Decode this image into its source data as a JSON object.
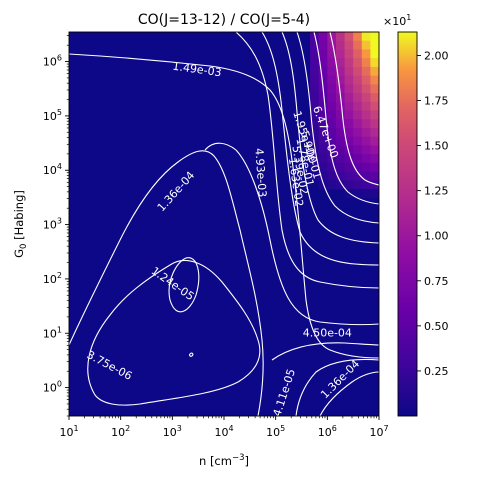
{
  "chart_data": {
    "type": "heatmap",
    "title": "CO(J=13-12) / CO(J=5-4)",
    "xlabel": "n [cm$^{-3}$]",
    "xlabel_text": "n [cm",
    "xlabel_sup": "−3",
    "xlabel_close": "]",
    "ylabel_text": "G",
    "ylabel_sub": "0",
    "ylabel_rest": " [Habing]",
    "xscale": "log",
    "yscale": "log",
    "xlim": [
      10,
      10000000
    ],
    "ylim": [
      0.3,
      3500000
    ],
    "x_ticks": [
      {
        "base": "10",
        "exp": "1",
        "value": 10
      },
      {
        "base": "10",
        "exp": "2",
        "value": 100
      },
      {
        "base": "10",
        "exp": "3",
        "value": 1000
      },
      {
        "base": "10",
        "exp": "4",
        "value": 10000
      },
      {
        "base": "10",
        "exp": "5",
        "value": 100000
      },
      {
        "base": "10",
        "exp": "6",
        "value": 1000000
      },
      {
        "base": "10",
        "exp": "7",
        "value": 10000000
      }
    ],
    "y_ticks": [
      {
        "base": "10",
        "exp": "0",
        "value": 1
      },
      {
        "base": "10",
        "exp": "1",
        "value": 10
      },
      {
        "base": "10",
        "exp": "2",
        "value": 100
      },
      {
        "base": "10",
        "exp": "3",
        "value": 1000
      },
      {
        "base": "10",
        "exp": "4",
        "value": 10000
      },
      {
        "base": "10",
        "exp": "5",
        "value": 100000
      },
      {
        "base": "10",
        "exp": "6",
        "value": 1000000
      }
    ],
    "colorbar": {
      "colormap": "plasma",
      "range": [
        0.0,
        2.13
      ],
      "multiplier_base": "×10",
      "multiplier_exp": "1",
      "ticks": [
        "0.25",
        "0.50",
        "0.75",
        "1.00",
        "1.25",
        "1.50",
        "1.75",
        "2.00"
      ],
      "tick_values": [
        0.25,
        0.5,
        0.75,
        1.0,
        1.25,
        1.5,
        1.75,
        2.0
      ]
    },
    "contour_labels": [
      {
        "text": "1.49e-03",
        "n": 3000,
        "g0": 700000,
        "angle": 8
      },
      {
        "text": "1.36e-04",
        "n": 1200,
        "g0": 4000,
        "angle": -48
      },
      {
        "text": "1.24e-05",
        "n": 1000,
        "g0": 80,
        "angle": 35
      },
      {
        "text": "3.75e-06",
        "n": 60,
        "g0": 2.5,
        "angle": 28
      },
      {
        "text": "4.93e-03",
        "n": 50000,
        "g0": 9000,
        "angle": 86
      },
      {
        "text": "1.63e-02",
        "n": 240000,
        "g0": 6000,
        "angle": 82
      },
      {
        "text": "5.39e-02",
        "n": 290000,
        "g0": 10000,
        "angle": 80
      },
      {
        "text": "1.78e-01",
        "n": 360000,
        "g0": 14000,
        "angle": 78
      },
      {
        "text": "5.90e-01",
        "n": 470000,
        "g0": 19000,
        "angle": 74
      },
      {
        "text": "1.95e+00",
        "n": 360000,
        "g0": 40000,
        "angle": 72
      },
      {
        "text": "6.47e+00",
        "n": 900000,
        "g0": 50000,
        "angle": 70
      },
      {
        "text": "4.50e-04",
        "n": 1000000,
        "g0": 10,
        "angle": 0
      },
      {
        "text": "4.11e-05",
        "n": 150000,
        "g0": 0.8,
        "angle": -72
      },
      {
        "text": "1.36e-04",
        "n": 1800000,
        "g0": 1.4,
        "angle": -45
      }
    ]
  },
  "colors": {
    "background_field": "#0d0887",
    "contour_line": "#ffffff"
  }
}
